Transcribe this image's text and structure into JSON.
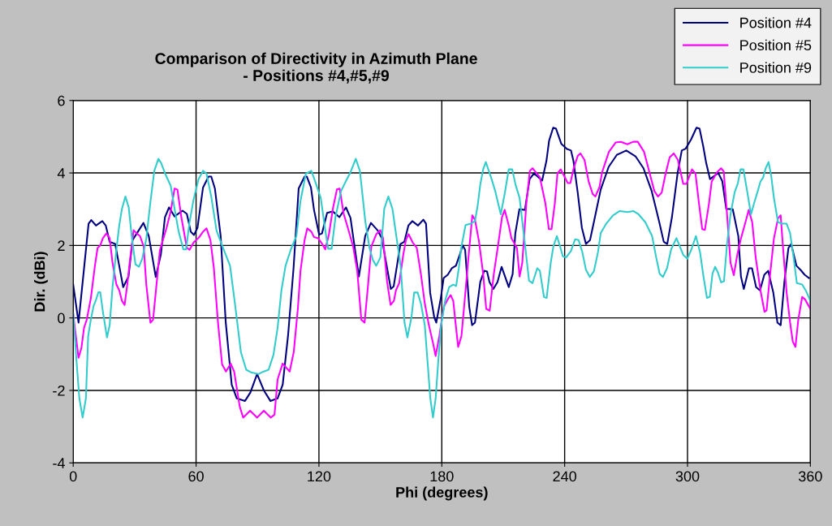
{
  "chart_data": {
    "type": "line",
    "title": "Comparison of Directivity in Azimuth Plane\n- Positions #4,#5,#9",
    "xlabel": "Phi (degrees)",
    "ylabel": "Dir. (dBi)",
    "xlim": [
      0,
      360
    ],
    "xticks": [
      0,
      60,
      120,
      180,
      240,
      300,
      360
    ],
    "ylim": [
      -4,
      6
    ],
    "yticks": [
      -4,
      -2,
      0,
      2,
      4,
      6
    ],
    "grid": true,
    "legend": "top right",
    "marker": "none",
    "line_style": "solid",
    "series": [
      {
        "name": "Position #4",
        "color": "#000080",
        "x": [
          0,
          2.6,
          7.5,
          8.8,
          11.1,
          14.2,
          15.9,
          17.8,
          20.5,
          24.4,
          27,
          29,
          31.6,
          34.3,
          36.9,
          40.3,
          42.8,
          44.8,
          46.8,
          49.5,
          53.4,
          55.5,
          57.4,
          59,
          60.7,
          63.4,
          66.1,
          67.4,
          69.2,
          72,
          74.5,
          77.4,
          79.9,
          83.9,
          86.5,
          89.8,
          93.1,
          96.3,
          99.8,
          102.3,
          104.9,
          107.6,
          110.1,
          113,
          114.1,
          116.1,
          117.6,
          120.1,
          121.5,
          124,
          126.7,
          130,
          133.2,
          135.4,
          139.5,
          142.6,
          145.4,
          148.6,
          150.7,
          155.1,
          156.5,
          159.8,
          161.7,
          163.7,
          165.6,
          168.4,
          171,
          172.3,
          174.3,
          176.3,
          177.3,
          179.5,
          180.9,
          182.9,
          184.9,
          186.9,
          188.8,
          190.2,
          191.4,
          193.4,
          194.8,
          196.2,
          198.8,
          200.7,
          202.1,
          203.3,
          205.2,
          207.2,
          209.2,
          212.7,
          214.6,
          215.9,
          217.9,
          220.6,
          222.9,
          225,
          229,
          231.1,
          232.4,
          234.4,
          235.8,
          238.4,
          241.1,
          243.1,
          244.3,
          246.4,
          248.4,
          250.4,
          252.4,
          254.3,
          257.6,
          261.5,
          265.5,
          270.1,
          274.6,
          278.5,
          282.5,
          286.1,
          288.4,
          290.1,
          292.4,
          295.2,
          297.2,
          299.1,
          301.7,
          304.4,
          305.9,
          307.7,
          309.1,
          311,
          315,
          317,
          318.9,
          322.1,
          324.8,
          326.1,
          327.5,
          330,
          331.5,
          333.5,
          335.4,
          337.5,
          339.4,
          341.9,
          343.9,
          345.5,
          347.3,
          349.3,
          350.6,
          353.2,
          355.3,
          357.2,
          359.3
        ],
        "values": [
          0.92,
          -0.13,
          2.6,
          2.7,
          2.55,
          2.67,
          2.55,
          2.1,
          2.04,
          0.85,
          1.14,
          2.15,
          2.38,
          2.62,
          2.26,
          1.13,
          1.75,
          2.78,
          3.05,
          2.8,
          2.96,
          2.87,
          2.38,
          2.29,
          2.49,
          3.6,
          3.9,
          3.9,
          3.57,
          2.26,
          -0.13,
          -1.84,
          -2.22,
          -2.29,
          -2.06,
          -1.55,
          -2.0,
          -2.29,
          -2.22,
          -1.84,
          -0.5,
          1.37,
          3.57,
          3.9,
          3.9,
          3.6,
          2.98,
          2.3,
          2.33,
          2.9,
          2.94,
          2.78,
          3.05,
          2.76,
          1.14,
          2.26,
          2.62,
          2.42,
          2.2,
          0.8,
          0.87,
          2.04,
          2.1,
          2.55,
          2.67,
          2.55,
          2.71,
          2.6,
          0.7,
          0.02,
          -0.13,
          0.54,
          1.1,
          1.19,
          1.37,
          1.44,
          1.75,
          2.0,
          1.88,
          0.31,
          -0.2,
          -0.13,
          0.99,
          1.3,
          1.28,
          0.99,
          0.8,
          0.99,
          1.41,
          0.85,
          1.21,
          2.33,
          3.0,
          2.98,
          3.83,
          3.99,
          3.79,
          4.33,
          4.89,
          5.25,
          5.22,
          4.8,
          4.66,
          4.62,
          4.33,
          3.45,
          2.49,
          2.04,
          2.15,
          2.65,
          3.54,
          4.17,
          4.5,
          4.62,
          4.46,
          4.13,
          3.5,
          2.67,
          2.1,
          2.04,
          2.78,
          4.01,
          4.62,
          4.67,
          4.92,
          5.25,
          5.22,
          4.73,
          4.28,
          3.83,
          4.0,
          3.77,
          3.01,
          3.0,
          2.26,
          1.14,
          0.8,
          1.37,
          1.37,
          0.85,
          0.76,
          1.19,
          1.3,
          0.7,
          -0.13,
          -0.2,
          0.99,
          1.93,
          2.04,
          1.44,
          1.32,
          1.19,
          1.1
        ]
      },
      {
        "name": "Position #5",
        "color": "#ff00ff",
        "x": [
          0,
          2.6,
          4,
          5.3,
          6.6,
          8.6,
          10.6,
          11.9,
          13.2,
          14.5,
          16.2,
          17.8,
          19.2,
          21.1,
          22.5,
          23.8,
          25.1,
          26.4,
          27.7,
          29.5,
          31,
          32.6,
          34.4,
          35.7,
          37.7,
          39,
          40.3,
          42.3,
          45.6,
          47.6,
          49.5,
          50.9,
          52.8,
          55.5,
          56.8,
          58.8,
          61.4,
          63.4,
          65.1,
          67,
          68.7,
          70.7,
          72.7,
          74.6,
          76.9,
          78.6,
          81.3,
          83,
          86.4,
          89.8,
          93.1,
          96.5,
          98.3,
          99.8,
          102.3,
          105.7,
          107.7,
          109.7,
          111,
          113,
          114.3,
          116.3,
          117.6,
          119.6,
          121.6,
          123.1,
          124.9,
          126.8,
          128.8,
          130.1,
          132.1,
          134.1,
          136.7,
          138.7,
          140.7,
          142.3,
          144,
          145.6,
          148,
          150,
          151.3,
          153.3,
          155,
          156.6,
          157.6,
          159.2,
          161.2,
          162.5,
          163.8,
          165.8,
          167.8,
          169.8,
          171.7,
          173.7,
          175.7,
          177,
          178.8,
          181,
          183,
          184.3,
          185.6,
          186.7,
          188,
          189.6,
          190.9,
          192.9,
          194.9,
          196.2,
          198.2,
          200.2,
          201.7,
          203.4,
          205.4,
          207.4,
          209.4,
          210.7,
          212.7,
          214,
          216.7,
          218,
          219.3,
          221.3,
          223,
          224.3,
          225.9,
          227.9,
          230.6,
          232.3,
          233.6,
          235.2,
          236.5,
          238.1,
          239.8,
          241.5,
          242.8,
          244.4,
          246.4,
          247.7,
          249.7,
          251.7,
          253.7,
          255,
          257,
          258.3,
          261.6,
          264.9,
          267.5,
          270.6,
          273.5,
          275.7,
          278.8,
          281.4,
          283.8,
          285.6,
          287.4,
          289.3,
          291.3,
          293.3,
          295.3,
          297.9,
          299.5,
          302.2,
          303.9,
          305.6,
          307.2,
          308.5,
          310.5,
          311.8,
          314.4,
          316.4,
          317.7,
          319.3,
          321,
          322.6,
          324.3,
          325.9,
          328.3,
          329.9,
          331.6,
          333.3,
          335.6,
          337.6,
          338.6,
          340.5,
          342.2,
          344.2,
          345.5,
          346.8,
          348.4,
          350.1,
          351.4,
          352.7,
          354.1,
          356,
          357.4,
          360
        ],
        "values": [
          0.1,
          -1.1,
          -0.83,
          -0.27,
          -0.05,
          0.54,
          1.44,
          1.93,
          2.0,
          2.2,
          2.33,
          2.2,
          1.52,
          0.92,
          0.76,
          0.47,
          0.36,
          0.92,
          1.59,
          2.42,
          2.33,
          2.26,
          1.97,
          0.92,
          -0.13,
          -0.05,
          0.7,
          1.86,
          2.49,
          2.94,
          3.57,
          3.54,
          2.78,
          1.93,
          1.88,
          2.08,
          2.22,
          2.38,
          2.47,
          2.15,
          1.37,
          -0.13,
          -1.28,
          -1.48,
          -1.26,
          -1.48,
          -2.44,
          -2.75,
          -2.56,
          -2.75,
          -2.56,
          -2.75,
          -2.67,
          -1.7,
          -1.26,
          -1.48,
          -0.94,
          0.25,
          1.3,
          2.15,
          2.47,
          2.38,
          2.23,
          2.2,
          2.04,
          1.89,
          2.31,
          3.01,
          3.55,
          3.57,
          2.87,
          2.49,
          1.97,
          1.3,
          -0.05,
          -0.13,
          0.92,
          1.97,
          2.31,
          2.42,
          2.2,
          0.99,
          0.36,
          0.47,
          0.76,
          0.96,
          1.75,
          2.15,
          2.31,
          2.08,
          1.93,
          1.21,
          0.4,
          -0.2,
          -0.69,
          -1.05,
          -0.5,
          0.31,
          0.52,
          0.63,
          0.47,
          -0.13,
          -0.8,
          -0.5,
          0.31,
          1.59,
          2.83,
          2.71,
          2.1,
          1.21,
          0.25,
          0.2,
          1.21,
          1.97,
          2.78,
          2.98,
          2.55,
          2.2,
          1.93,
          1.14,
          1.52,
          3.16,
          4.06,
          4.13,
          4.02,
          3.88,
          3.16,
          2.45,
          2.45,
          3.16,
          3.99,
          4.1,
          3.91,
          3.72,
          3.72,
          4.13,
          4.47,
          4.54,
          4.36,
          3.77,
          3.42,
          3.35,
          3.61,
          4.02,
          4.58,
          4.84,
          4.86,
          4.79,
          4.86,
          4.86,
          4.58,
          4.02,
          3.5,
          3.35,
          3.46,
          3.98,
          4.43,
          4.54,
          4.36,
          3.7,
          3.7,
          4.1,
          3.98,
          3.16,
          2.45,
          2.43,
          3.16,
          3.76,
          4.02,
          4.13,
          4.04,
          2.86,
          1.52,
          1.18,
          1.74,
          2.15,
          2.64,
          2.98,
          2.64,
          1.67,
          0.77,
          0.17,
          0.21,
          1.29,
          2.19,
          2.75,
          2.83,
          1.82,
          0.7,
          -0.13,
          -0.65,
          -0.8,
          -0.05,
          0.58,
          0.51,
          0.25
        ]
      },
      {
        "name": "Position #9",
        "color": "#33cccc",
        "x": [
          0,
          1.7,
          3,
          4.6,
          6.2,
          7.3,
          8.6,
          9.9,
          11.2,
          12.3,
          13.2,
          14.5,
          16.5,
          17.8,
          19.2,
          21.1,
          22.5,
          23.8,
          25.5,
          27.1,
          28.7,
          30.4,
          32.1,
          33.7,
          35.7,
          37.7,
          39.6,
          41.6,
          42.9,
          44.9,
          47.6,
          49.5,
          51.5,
          53.8,
          55.1,
          56.8,
          58.8,
          61.2,
          63.4,
          65.1,
          67.4,
          70,
          72.7,
          76.6,
          79.3,
          81.9,
          84.5,
          87.2,
          90.5,
          92.5,
          95.4,
          97.8,
          99.8,
          101.7,
          103.7,
          106.3,
          109,
          111,
          113.6,
          116.3,
          118.2,
          120.9,
          122.9,
          124.5,
          126.2,
          128.1,
          130.8,
          133.4,
          135.4,
          138,
          140,
          142.7,
          144.7,
          146.4,
          148,
          150,
          151.9,
          153.9,
          155.9,
          157.2,
          159.9,
          161.8,
          163.2,
          165.2,
          166.5,
          168.2,
          169.8,
          171.7,
          173.1,
          174.4,
          175.7,
          177,
          178.4,
          179.7,
          181.6,
          183.6,
          185.6,
          187,
          188.3,
          189.6,
          191.6,
          194.2,
          196.2,
          197.5,
          198.8,
          200.2,
          201.5,
          204.1,
          206.1,
          208.8,
          210.7,
          212.7,
          214.4,
          216,
          218,
          220.6,
          222.6,
          224.3,
          226.6,
          227.9,
          229.9,
          231.2,
          233.2,
          234.5,
          236.2,
          237.8,
          239.1,
          240.7,
          243.1,
          245.1,
          246.8,
          248.6,
          250.4,
          252.3,
          254.3,
          256.3,
          257.6,
          260.3,
          263.6,
          266.9,
          270.8,
          273.5,
          276.1,
          279.4,
          282.7,
          284.7,
          286.4,
          288,
          290,
          292,
          294.6,
          297.9,
          299.9,
          301.9,
          304.1,
          306.1,
          307.8,
          309.5,
          310.9,
          312.2,
          313.5,
          314.8,
          316.4,
          317.8,
          319.3,
          321,
          323,
          324.6,
          325.9,
          327.3,
          329,
          331,
          332.5,
          334.3,
          335.6,
          336.9,
          338.2,
          339.6,
          340.9,
          342.2,
          344.2,
          346.1,
          348.4,
          350.1,
          351.8,
          353.4,
          356,
          358,
          360
        ],
        "values": [
          0.13,
          -1.25,
          -2.22,
          -2.75,
          -2.22,
          -0.5,
          -0.05,
          0.32,
          0.51,
          0.71,
          0.71,
          0.17,
          -0.54,
          -0.2,
          0.85,
          1.89,
          2.56,
          3.01,
          3.35,
          3.05,
          2.19,
          1.48,
          1.41,
          1.63,
          2.19,
          3.2,
          4.06,
          4.39,
          4.28,
          3.98,
          3.65,
          3.01,
          2.38,
          1.89,
          1.89,
          2.64,
          3.27,
          3.83,
          4.06,
          3.98,
          3.35,
          2.41,
          2.0,
          1.44,
          0.25,
          -0.95,
          -1.43,
          -1.51,
          -1.55,
          -1.49,
          -1.43,
          -1.02,
          -0.28,
          0.77,
          1.44,
          1.89,
          2.26,
          3.23,
          3.98,
          4.06,
          3.76,
          3.31,
          2.49,
          1.91,
          1.91,
          2.79,
          3.5,
          3.8,
          4.02,
          4.39,
          4.06,
          2.64,
          1.93,
          1.59,
          1.44,
          1.67,
          3.01,
          3.35,
          3.01,
          2.49,
          1.44,
          -0.13,
          -0.54,
          0.02,
          0.7,
          0.7,
          0.4,
          -0.2,
          -1.25,
          -2.22,
          -2.75,
          -2.22,
          -1.1,
          -0.2,
          0.47,
          0.85,
          0.92,
          0.88,
          1.37,
          1.97,
          2.56,
          2.6,
          2.67,
          3.09,
          3.68,
          4.1,
          4.3,
          3.87,
          3.5,
          2.86,
          3.42,
          4.1,
          4.1,
          3.68,
          3.31,
          2.04,
          1.03,
          0.96,
          1.37,
          1.3,
          0.58,
          0.55,
          1.52,
          1.97,
          2.26,
          1.97,
          1.7,
          1.67,
          1.85,
          2.17,
          2.15,
          1.82,
          1.33,
          1.13,
          1.29,
          1.82,
          2.34,
          2.6,
          2.83,
          2.95,
          2.92,
          2.95,
          2.86,
          2.64,
          2.26,
          1.67,
          1.22,
          1.13,
          1.37,
          1.89,
          2.2,
          1.74,
          1.63,
          1.89,
          2.26,
          1.82,
          1.14,
          0.55,
          0.58,
          1.22,
          1.41,
          1.26,
          0.98,
          1.01,
          2.04,
          2.86,
          3.46,
          3.72,
          4.1,
          4.1,
          3.54,
          2.86,
          3.16,
          3.5,
          3.76,
          3.87,
          4.13,
          4.3,
          3.91,
          3.31,
          2.64,
          2.6,
          2.6,
          2.34,
          1.67,
          0.96,
          0.92,
          0.73,
          0.47
        ]
      }
    ]
  }
}
